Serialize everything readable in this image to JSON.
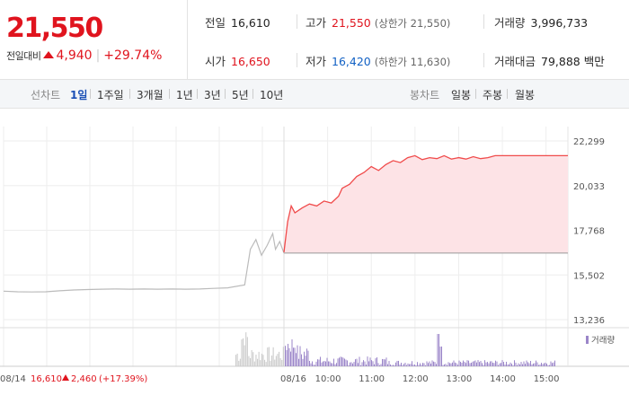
{
  "summary": {
    "price": "21,550",
    "change_label": "전일대비",
    "change_amount": "4,940",
    "change_pct": "+29.74%"
  },
  "stats": {
    "prev_close": {
      "label": "전일",
      "value": "16,610"
    },
    "high": {
      "label": "고가",
      "value": "21,550",
      "sub": "(상한가 21,550)"
    },
    "volume": {
      "label": "거래량",
      "value": "3,996,733"
    },
    "open": {
      "label": "시가",
      "value": "16,650"
    },
    "low": {
      "label": "저가",
      "value": "16,420",
      "sub": "(하한가 11,630)"
    },
    "turnover": {
      "label": "거래대금",
      "value": "79,888 백만"
    }
  },
  "tabs": {
    "line_label": "선차트",
    "line_periods": [
      "1일",
      "1주일",
      "3개월",
      "1년",
      "3년",
      "5년",
      "10년"
    ],
    "selected_period": "1일",
    "candle_label": "봉차트",
    "candle_periods": [
      "일봉",
      "주봉",
      "월봉"
    ]
  },
  "colors": {
    "up": "#e0141e",
    "down": "#1261c4",
    "accent": "#1a4fb5",
    "fill": "#fde3e6",
    "volume": "#9b86c9",
    "prev_day": "#bbbbbb"
  },
  "chart_data": {
    "type": "area",
    "y_ticks": [
      "22,299",
      "20,033",
      "17,768",
      "15,502",
      "13,236"
    ],
    "ylim": [
      13236,
      22299
    ],
    "baseline": 16610,
    "x_ticks": [
      "08/14",
      "08/16",
      "10:00",
      "11:00",
      "12:00",
      "13:00",
      "14:00",
      "15:00"
    ],
    "prev_day_label": "08/14",
    "prev_day_close": "16,610",
    "prev_day_change": "2,460",
    "prev_day_pct": "(+17.39%)",
    "volume_legend": "거래량",
    "prev_day_series": [
      [
        0,
        14680
      ],
      [
        0.05,
        14650
      ],
      [
        0.1,
        14640
      ],
      [
        0.15,
        14650
      ],
      [
        0.2,
        14700
      ],
      [
        0.25,
        14740
      ],
      [
        0.3,
        14760
      ],
      [
        0.35,
        14780
      ],
      [
        0.4,
        14790
      ],
      [
        0.45,
        14780
      ],
      [
        0.5,
        14790
      ],
      [
        0.55,
        14780
      ],
      [
        0.6,
        14790
      ],
      [
        0.65,
        14780
      ],
      [
        0.7,
        14790
      ],
      [
        0.75,
        14820
      ],
      [
        0.8,
        14850
      ],
      [
        0.86,
        15000
      ],
      [
        0.88,
        16800
      ],
      [
        0.9,
        17300
      ],
      [
        0.92,
        16500
      ],
      [
        0.94,
        17000
      ],
      [
        0.96,
        17600
      ],
      [
        0.97,
        16800
      ],
      [
        0.985,
        17200
      ],
      [
        1,
        16610
      ]
    ],
    "today_series": [
      [
        "09:00",
        16650
      ],
      [
        "09:05",
        18200
      ],
      [
        "09:10",
        19000
      ],
      [
        "09:15",
        18650
      ],
      [
        "09:25",
        18900
      ],
      [
        "09:35",
        19100
      ],
      [
        "09:45",
        19000
      ],
      [
        "09:55",
        19250
      ],
      [
        "10:05",
        19150
      ],
      [
        "10:15",
        19500
      ],
      [
        "10:20",
        19900
      ],
      [
        "10:30",
        20100
      ],
      [
        "10:40",
        20500
      ],
      [
        "10:50",
        20700
      ],
      [
        "11:00",
        21000
      ],
      [
        "11:10",
        20800
      ],
      [
        "11:20",
        21100
      ],
      [
        "11:30",
        21300
      ],
      [
        "11:40",
        21200
      ],
      [
        "11:50",
        21450
      ],
      [
        "12:00",
        21550
      ],
      [
        "12:10",
        21350
      ],
      [
        "12:20",
        21450
      ],
      [
        "12:30",
        21400
      ],
      [
        "12:40",
        21550
      ],
      [
        "12:50",
        21380
      ],
      [
        "13:00",
        21450
      ],
      [
        "13:10",
        21380
      ],
      [
        "13:20",
        21500
      ],
      [
        "13:30",
        21400
      ],
      [
        "13:40",
        21450
      ],
      [
        "13:50",
        21550
      ],
      [
        "14:00",
        21550
      ],
      [
        "15:30",
        21550
      ]
    ]
  }
}
